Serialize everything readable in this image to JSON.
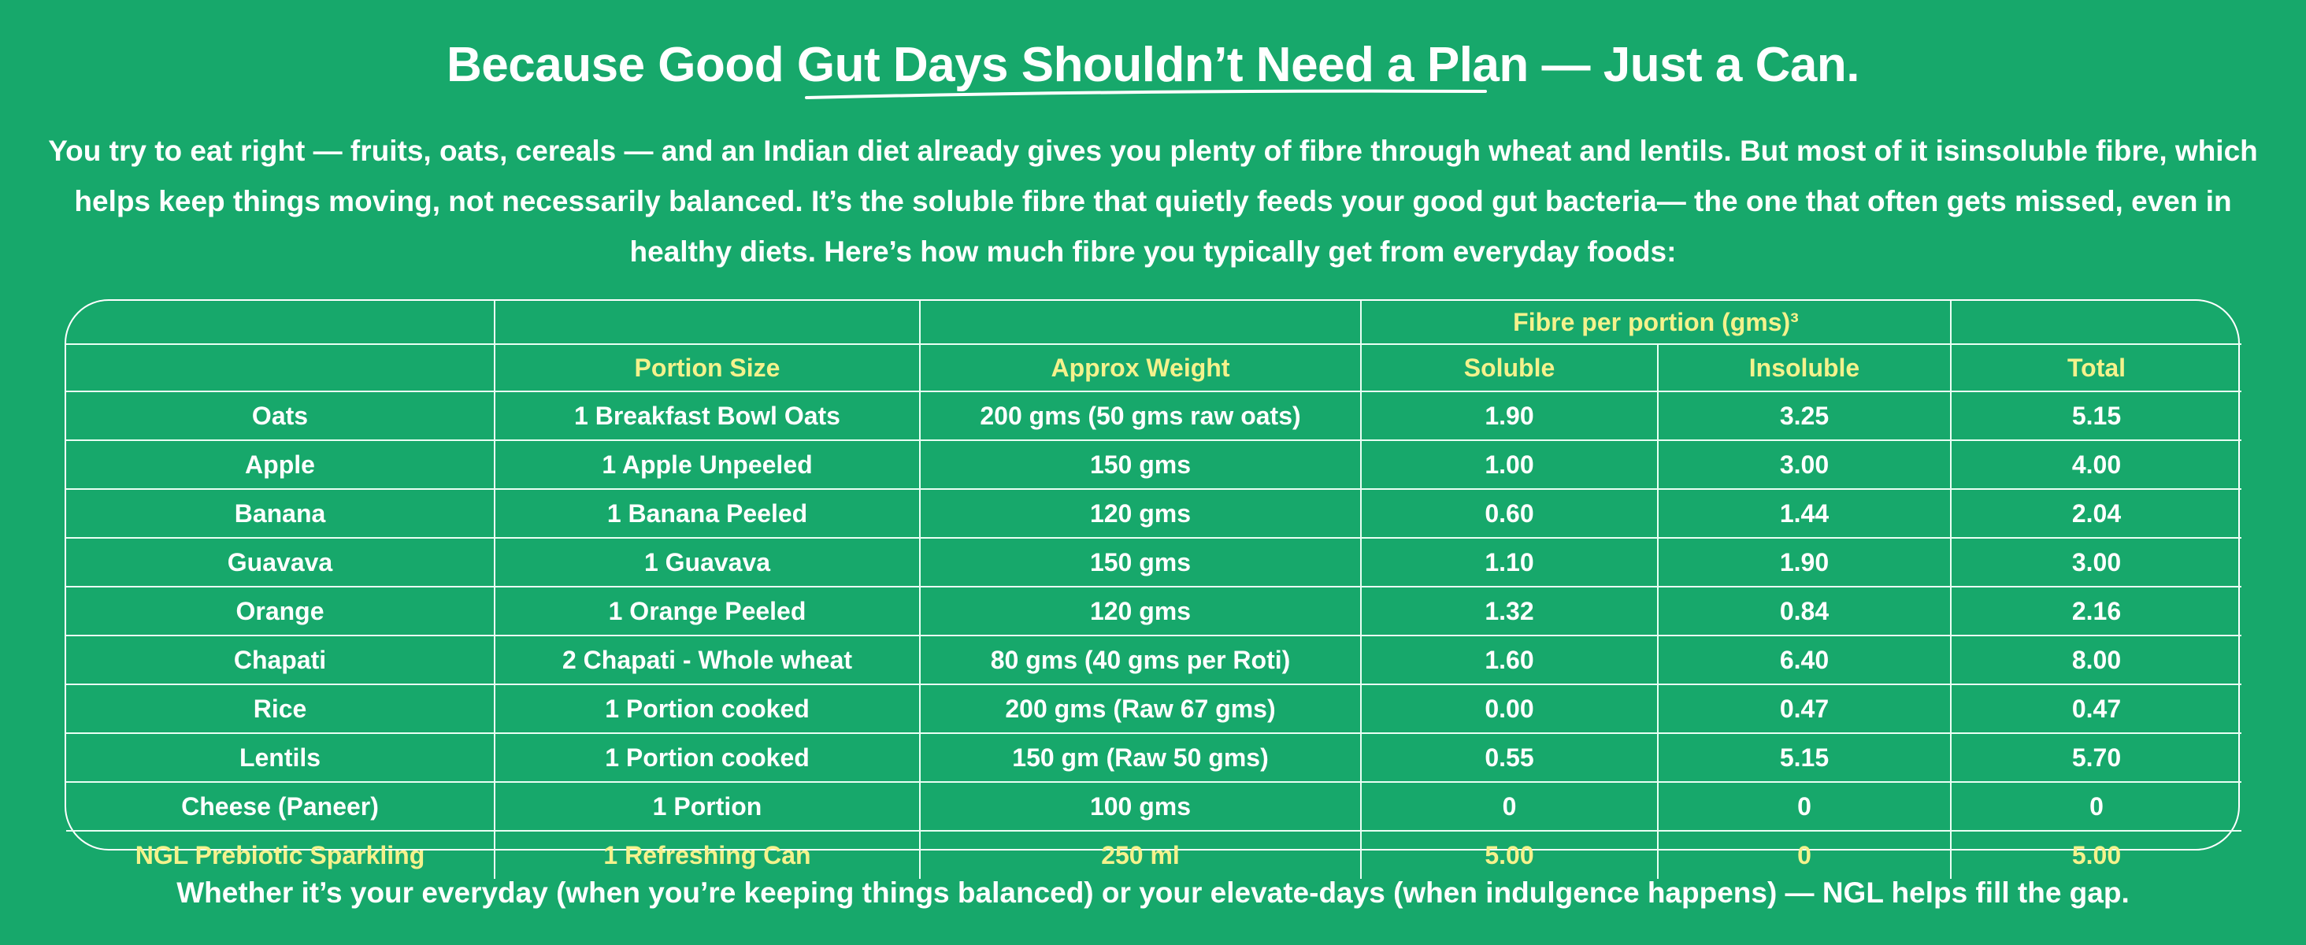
{
  "headline": "Because Good Gut Days Shouldn’t Need a Plan — Just a Can.",
  "intro": "You try to eat right — fruits, oats, cereals — and an Indian diet already gives you plenty of fibre through wheat and lentils. But most of it isinsoluble fibre, which helps keep things moving, not necessarily balanced. It’s the soluble fibre that quietly feeds your good gut bacteria— the one that often gets missed, even in healthy diets. Here’s how much fibre you typically get from everyday foods:",
  "table": {
    "group_header": "Fibre per portion (gms)³",
    "columns": {
      "food": "",
      "portion": "Portion Size",
      "weight": "Approx Weight",
      "soluble": "Soluble",
      "insoluble": "Insoluble",
      "total": "Total"
    },
    "rows": [
      {
        "food": "Oats",
        "portion": "1 Breakfast Bowl Oats",
        "weight": "200 gms (50 gms raw oats)",
        "soluble": "1.90",
        "insoluble": "3.25",
        "total": "5.15"
      },
      {
        "food": "Apple",
        "portion": "1 Apple Unpeeled",
        "weight": "150 gms",
        "soluble": "1.00",
        "insoluble": "3.00",
        "total": "4.00"
      },
      {
        "food": "Banana",
        "portion": "1 Banana Peeled",
        "weight": "120 gms",
        "soluble": "0.60",
        "insoluble": "1.44",
        "total": "2.04"
      },
      {
        "food": "Guavava",
        "portion": "1 Guavava",
        "weight": "150 gms",
        "soluble": "1.10",
        "insoluble": "1.90",
        "total": "3.00"
      },
      {
        "food": "Orange",
        "portion": "1 Orange Peeled",
        "weight": "120 gms",
        "soluble": "1.32",
        "insoluble": "0.84",
        "total": "2.16"
      },
      {
        "food": "Chapati",
        "portion": "2 Chapati - Whole wheat",
        "weight": "80 gms (40 gms per Roti)",
        "soluble": "1.60",
        "insoluble": "6.40",
        "total": "8.00"
      },
      {
        "food": "Rice",
        "portion": "1 Portion cooked",
        "weight": "200 gms (Raw 67 gms)",
        "soluble": "0.00",
        "insoluble": "0.47",
        "total": "0.47"
      },
      {
        "food": "Lentils",
        "portion": "1 Portion cooked",
        "weight": "150 gm (Raw 50 gms)",
        "soluble": "0.55",
        "insoluble": "5.15",
        "total": "5.70"
      },
      {
        "food": "Cheese (Paneer)",
        "portion": "1 Portion",
        "weight": "100 gms",
        "soluble": "0",
        "insoluble": "0",
        "total": "0"
      },
      {
        "food": "NGL Prebiotic Sparkling",
        "portion": "1 Refreshing Can",
        "weight": "250 ml",
        "soluble": "5.00",
        "insoluble": "0",
        "total": "5.00"
      }
    ]
  },
  "footer": "Whether it’s your everyday (when you’re keeping things balanced) or your elevate-days (when indulgence happens) — NGL helps fill the gap.",
  "colors": {
    "background": "#17a86b",
    "text": "#ffffff",
    "highlight": "#f4f28c"
  }
}
